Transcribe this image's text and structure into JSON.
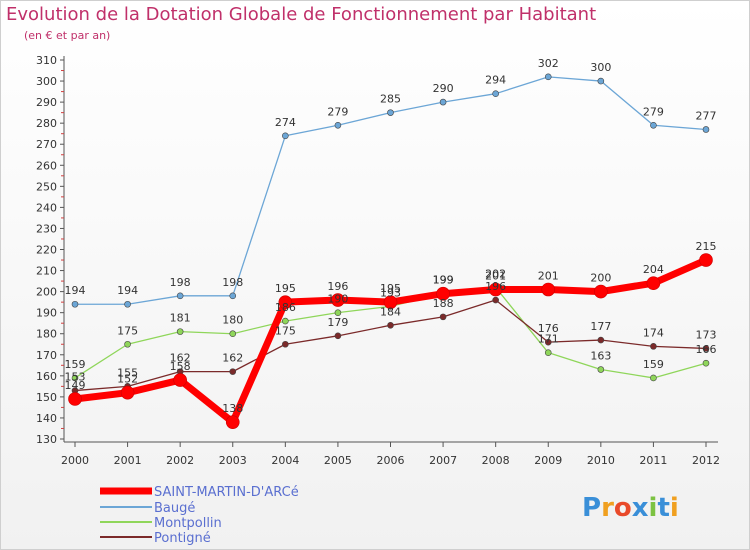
{
  "title": "Evolution de la Dotation Globale de Fonctionnement par Habitant",
  "subtitle": "(en € et par an)",
  "brand": "Proxiti",
  "chart_data": {
    "type": "line",
    "title": "Evolution de la Dotation Globale de Fonctionnement par Habitant",
    "ylabel": "(en € et par an)",
    "xlabel": "",
    "categories": [
      "2000",
      "2001",
      "2002",
      "2003",
      "2004",
      "2005",
      "2006",
      "2007",
      "2008",
      "2009",
      "2010",
      "2011",
      "2012"
    ],
    "ylim": [
      130,
      310
    ],
    "yticks": [
      130,
      140,
      150,
      160,
      170,
      180,
      190,
      200,
      210,
      220,
      230,
      240,
      250,
      260,
      270,
      280,
      290,
      300,
      310
    ],
    "grid": false,
    "legend": "bottom-left",
    "series": [
      {
        "name": "SAINT-MARTIN-D'ARCé",
        "color": "#ff0000",
        "width": 7,
        "values": [
          149,
          152,
          158,
          138,
          195,
          196,
          195,
          199,
          201,
          201,
          200,
          204,
          215
        ]
      },
      {
        "name": "Baugé",
        "color": "#6ca6d6",
        "width": 1.3,
        "values": [
          194,
          194,
          198,
          198,
          274,
          279,
          285,
          290,
          294,
          302,
          300,
          279,
          277
        ]
      },
      {
        "name": "Montpollin",
        "color": "#8fd65a",
        "width": 1.3,
        "values": [
          159,
          175,
          181,
          180,
          186,
          190,
          193,
          199,
          202,
          171,
          163,
          159,
          166
        ]
      },
      {
        "name": "Pontigné",
        "color": "#7b2a2a",
        "width": 1.3,
        "values": [
          153,
          155,
          162,
          162,
          175,
          179,
          184,
          188,
          196,
          176,
          177,
          174,
          173
        ]
      }
    ]
  }
}
